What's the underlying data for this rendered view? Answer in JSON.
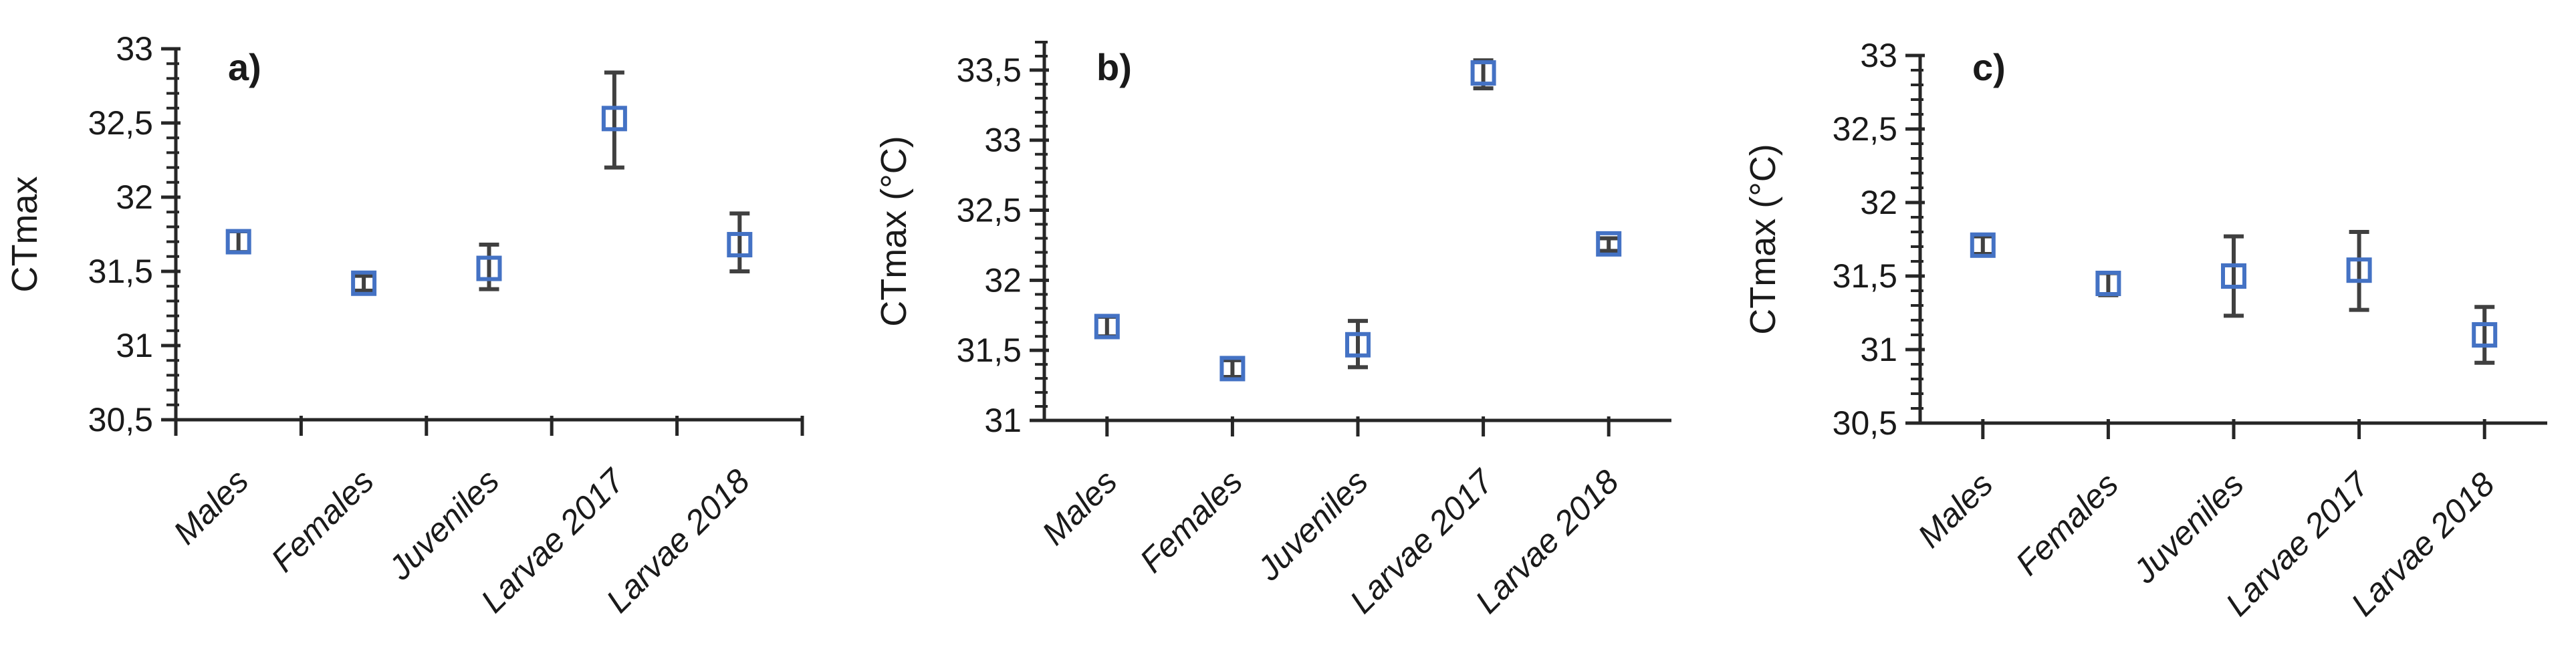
{
  "figure_title": "",
  "style": {
    "marker_color": "#4472C4",
    "marker_shape": "open-square",
    "error_bar_color": "#404040",
    "axis_color": "#262626",
    "text_color": "#1a1a1a"
  },
  "chart_data": [
    {
      "type": "scatter",
      "panel_label": "a)",
      "ylabel": "CTmax",
      "xlabel": "",
      "legend": "none",
      "grid": false,
      "categories": [
        "Males",
        "Females",
        "Juveniles",
        "Larvae 2017",
        "Larvae 2018"
      ],
      "points": [
        {
          "category": "Males",
          "value": 31.7,
          "err_plus": 0.07,
          "err_minus": 0.07
        },
        {
          "category": "Females",
          "value": 31.42,
          "err_plus": 0.05,
          "err_minus": 0.05
        },
        {
          "category": "Juveniles",
          "value": 31.52,
          "err_plus": 0.16,
          "err_minus": 0.14
        },
        {
          "category": "Larvae 2017",
          "value": 32.53,
          "err_plus": 0.31,
          "err_minus": 0.33
        },
        {
          "category": "Larvae 2018",
          "value": 31.68,
          "err_plus": 0.21,
          "err_minus": 0.18
        }
      ],
      "ylim": [
        30.5,
        33.0
      ],
      "ytick_values": [
        30.5,
        31.0,
        31.5,
        32.0,
        32.5,
        33.0
      ],
      "ytick_labels": [
        "30,5",
        "31",
        "31,5",
        "32",
        "32,5",
        "33"
      ],
      "minor_tick_interval": 0.1,
      "x_tick_position": "between-categories"
    },
    {
      "type": "scatter",
      "panel_label": "b)",
      "ylabel": "CTmax (°C)",
      "xlabel": "",
      "legend": "none",
      "grid": false,
      "categories": [
        "Males",
        "Females",
        "Juveniles",
        "Larvae 2017",
        "Larvae 2018"
      ],
      "points": [
        {
          "category": "Males",
          "value": 31.67,
          "err_plus": 0.07,
          "err_minus": 0.07
        },
        {
          "category": "Females",
          "value": 31.37,
          "err_plus": 0.06,
          "err_minus": 0.06
        },
        {
          "category": "Juveniles",
          "value": 31.54,
          "err_plus": 0.17,
          "err_minus": 0.16
        },
        {
          "category": "Larvae 2017",
          "value": 33.48,
          "err_plus": 0.09,
          "err_minus": 0.11
        },
        {
          "category": "Larvae 2018",
          "value": 32.26,
          "err_plus": 0.04,
          "err_minus": 0.05
        }
      ],
      "ylim": [
        31.0,
        33.7
      ],
      "ytick_values": [
        31.0,
        31.5,
        32.0,
        32.5,
        33.0,
        33.5
      ],
      "ytick_labels": [
        "31",
        "31,5",
        "32",
        "32,5",
        "33",
        "33,5"
      ],
      "minor_tick_interval": 0.1,
      "x_tick_position": "on-categories"
    },
    {
      "type": "scatter",
      "panel_label": "c)",
      "ylabel": "CTmax (°C)",
      "xlabel": "",
      "legend": "none",
      "grid": false,
      "categories": [
        "Males",
        "Females",
        "Juveniles",
        "Larvae 2017",
        "Larvae 2018"
      ],
      "points": [
        {
          "category": "Males",
          "value": 31.71,
          "err_plus": 0.06,
          "err_minus": 0.06
        },
        {
          "category": "Females",
          "value": 31.45,
          "err_plus": 0.07,
          "err_minus": 0.08
        },
        {
          "category": "Juveniles",
          "value": 31.5,
          "err_plus": 0.27,
          "err_minus": 0.27
        },
        {
          "category": "Larvae 2017",
          "value": 31.54,
          "err_plus": 0.26,
          "err_minus": 0.27
        },
        {
          "category": "Larvae 2018",
          "value": 31.1,
          "err_plus": 0.19,
          "err_minus": 0.19
        }
      ],
      "ylim": [
        30.5,
        33.0
      ],
      "ytick_values": [
        30.5,
        31.0,
        31.5,
        32.0,
        32.5,
        33.0
      ],
      "ytick_labels": [
        "30,5",
        "31",
        "31,5",
        "32",
        "32,5",
        "33"
      ],
      "minor_tick_interval": 0.1,
      "x_tick_position": "on-categories"
    }
  ]
}
